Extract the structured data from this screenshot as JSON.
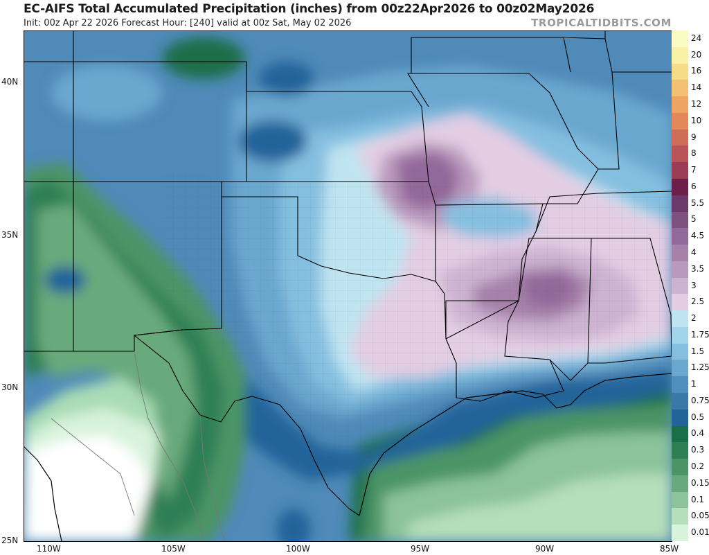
{
  "header": {
    "title": "EC-AIFS Total Accumulated Precipitation (inches) from 00z22Apr2026 to 00z02May2026",
    "subtitle": "Init: 00z Apr 22 2026   Forecast Hour: [240]   valid at 00z Sat, May 02 2026",
    "brand": "TROPICALTIDBITS.COM"
  },
  "axes": {
    "latitude": [
      {
        "label": "40N",
        "lat": 40
      },
      {
        "label": "35N",
        "lat": 35
      },
      {
        "label": "30N",
        "lat": 30
      },
      {
        "label": "25N",
        "lat": 25
      }
    ],
    "longitude": [
      {
        "label": "110W",
        "lon": -110
      },
      {
        "label": "105W",
        "lon": -105
      },
      {
        "label": "100W",
        "lon": -100
      },
      {
        "label": "95W",
        "lon": -95
      },
      {
        "label": "90W",
        "lon": -90
      },
      {
        "label": "85W",
        "lon": -85
      }
    ]
  },
  "legend": {
    "levels": [
      {
        "label": "24",
        "color": "#fbfbc4"
      },
      {
        "label": "20",
        "color": "#f9f2a6"
      },
      {
        "label": "16",
        "color": "#f7dc88"
      },
      {
        "label": "14",
        "color": "#f4c074"
      },
      {
        "label": "12",
        "color": "#efa463"
      },
      {
        "label": "10",
        "color": "#e2885a"
      },
      {
        "label": "9",
        "color": "#cf6d58"
      },
      {
        "label": "8",
        "color": "#b85458"
      },
      {
        "label": "7",
        "color": "#9b3d55"
      },
      {
        "label": "6",
        "color": "#6e1e4a"
      },
      {
        "label": "5.5",
        "color": "#6b3a6a"
      },
      {
        "label": "5",
        "color": "#7e5181"
      },
      {
        "label": "4.5",
        "color": "#93689a"
      },
      {
        "label": "4",
        "color": "#a682aa"
      },
      {
        "label": "3.5",
        "color": "#b999bd"
      },
      {
        "label": "3",
        "color": "#cdb3d2"
      },
      {
        "label": "2.5",
        "color": "#e3cde3"
      },
      {
        "label": "2",
        "color": "#bfe4f1"
      },
      {
        "label": "1.75",
        "color": "#a2d4ea"
      },
      {
        "label": "1.5",
        "color": "#85bfe0"
      },
      {
        "label": "1.25",
        "color": "#6aa7cf"
      },
      {
        "label": "1",
        "color": "#508ebd"
      },
      {
        "label": "0.75",
        "color": "#3a78a8"
      },
      {
        "label": "0.5",
        "color": "#22649a"
      },
      {
        "label": "0.4",
        "color": "#1a6e48"
      },
      {
        "label": "0.3",
        "color": "#2f7f55"
      },
      {
        "label": "0.2",
        "color": "#4b9466"
      },
      {
        "label": "0.15",
        "color": "#69aa7c"
      },
      {
        "label": "0.1",
        "color": "#8cc39a"
      },
      {
        "label": "0.05",
        "color": "#b5deba"
      },
      {
        "label": "0.01",
        "color": "#d8f3dc"
      }
    ]
  }
}
